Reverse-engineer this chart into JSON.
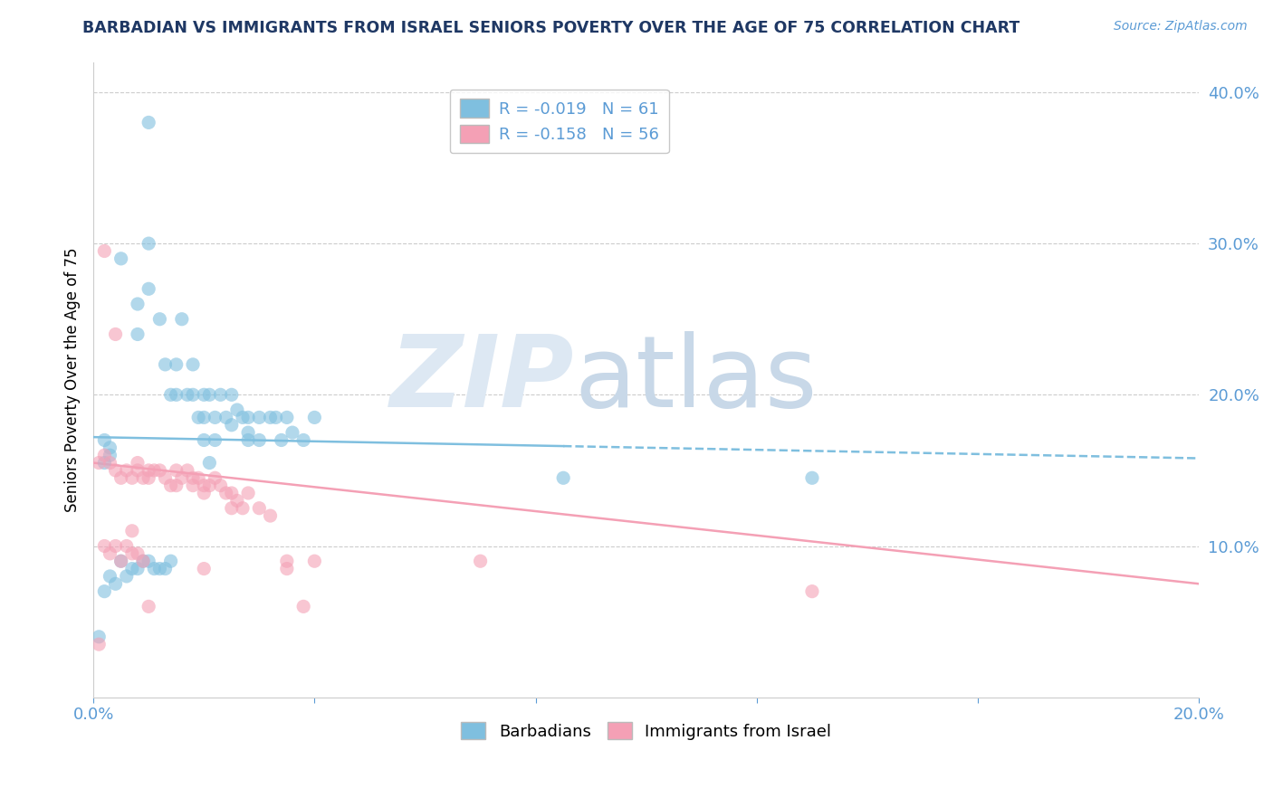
{
  "title": "BARBADIAN VS IMMIGRANTS FROM ISRAEL SENIORS POVERTY OVER THE AGE OF 75 CORRELATION CHART",
  "source": "Source: ZipAtlas.com",
  "ylabel": "Seniors Poverty Over the Age of 75",
  "xlim": [
    0.0,
    0.2
  ],
  "ylim": [
    0.0,
    0.42
  ],
  "yticks_right": [
    0.1,
    0.2,
    0.3,
    0.4
  ],
  "ytick_labels_right": [
    "10.0%",
    "20.0%",
    "30.0%",
    "40.0%"
  ],
  "blue_color": "#7fbfdf",
  "pink_color": "#f4a0b5",
  "blue_R": -0.019,
  "blue_N": 61,
  "pink_R": -0.158,
  "pink_N": 56,
  "blue_line_start_y": 0.172,
  "blue_line_end_y": 0.158,
  "pink_line_start_y": 0.155,
  "pink_line_end_y": 0.075,
  "blue_points_x": [
    0.003,
    0.005,
    0.008,
    0.008,
    0.01,
    0.01,
    0.01,
    0.012,
    0.013,
    0.014,
    0.015,
    0.015,
    0.016,
    0.017,
    0.018,
    0.018,
    0.019,
    0.02,
    0.02,
    0.02,
    0.021,
    0.022,
    0.022,
    0.023,
    0.024,
    0.025,
    0.025,
    0.026,
    0.027,
    0.028,
    0.028,
    0.028,
    0.03,
    0.03,
    0.032,
    0.033,
    0.034,
    0.035,
    0.036,
    0.038,
    0.04,
    0.002,
    0.003,
    0.004,
    0.005,
    0.006,
    0.007,
    0.008,
    0.009,
    0.01,
    0.011,
    0.012,
    0.013,
    0.014,
    0.002,
    0.002,
    0.003,
    0.085,
    0.13,
    0.001,
    0.021
  ],
  "blue_points_y": [
    0.16,
    0.29,
    0.26,
    0.24,
    0.38,
    0.3,
    0.27,
    0.25,
    0.22,
    0.2,
    0.22,
    0.2,
    0.25,
    0.2,
    0.22,
    0.2,
    0.185,
    0.2,
    0.185,
    0.17,
    0.2,
    0.185,
    0.17,
    0.2,
    0.185,
    0.2,
    0.18,
    0.19,
    0.185,
    0.185,
    0.17,
    0.175,
    0.185,
    0.17,
    0.185,
    0.185,
    0.17,
    0.185,
    0.175,
    0.17,
    0.185,
    0.07,
    0.08,
    0.075,
    0.09,
    0.08,
    0.085,
    0.085,
    0.09,
    0.09,
    0.085,
    0.085,
    0.085,
    0.09,
    0.17,
    0.155,
    0.165,
    0.145,
    0.145,
    0.04,
    0.155
  ],
  "pink_points_x": [
    0.002,
    0.003,
    0.004,
    0.005,
    0.006,
    0.007,
    0.008,
    0.008,
    0.009,
    0.01,
    0.01,
    0.011,
    0.012,
    0.013,
    0.014,
    0.015,
    0.015,
    0.016,
    0.017,
    0.018,
    0.018,
    0.019,
    0.02,
    0.02,
    0.021,
    0.022,
    0.023,
    0.024,
    0.025,
    0.025,
    0.026,
    0.027,
    0.028,
    0.03,
    0.032,
    0.035,
    0.038,
    0.04,
    0.002,
    0.003,
    0.004,
    0.005,
    0.006,
    0.007,
    0.008,
    0.009,
    0.01,
    0.07,
    0.13,
    0.001,
    0.001,
    0.02,
    0.035,
    0.002,
    0.004,
    0.007
  ],
  "pink_points_y": [
    0.16,
    0.155,
    0.15,
    0.145,
    0.15,
    0.145,
    0.155,
    0.15,
    0.145,
    0.15,
    0.145,
    0.15,
    0.15,
    0.145,
    0.14,
    0.15,
    0.14,
    0.145,
    0.15,
    0.145,
    0.14,
    0.145,
    0.14,
    0.135,
    0.14,
    0.145,
    0.14,
    0.135,
    0.135,
    0.125,
    0.13,
    0.125,
    0.135,
    0.125,
    0.12,
    0.09,
    0.06,
    0.09,
    0.1,
    0.095,
    0.1,
    0.09,
    0.1,
    0.095,
    0.095,
    0.09,
    0.06,
    0.09,
    0.07,
    0.155,
    0.035,
    0.085,
    0.085,
    0.295,
    0.24,
    0.11
  ],
  "background_color": "#ffffff",
  "grid_color": "#cccccc",
  "title_color": "#1f3864",
  "axis_color": "#5b9bd5",
  "legend_R_color": "#5b9bd5",
  "legend_N_color": "#5b9bd5"
}
